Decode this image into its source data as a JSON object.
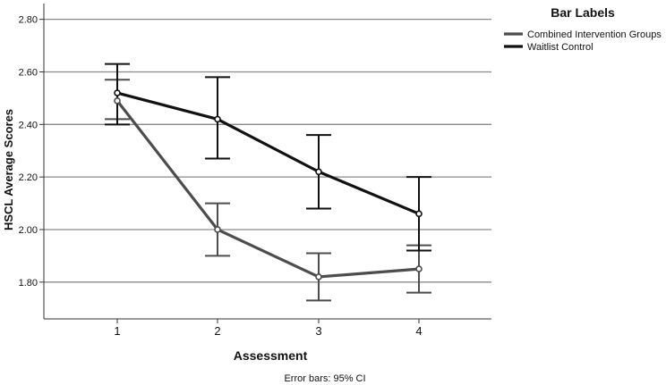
{
  "chart_data": {
    "type": "line",
    "title": "",
    "xlabel": "Assessment",
    "ylabel": "HSCL Average Scores",
    "categories": [
      "1",
      "2",
      "3",
      "4"
    ],
    "ylim": [
      1.66,
      2.86
    ],
    "y_ticks": [
      "1.80",
      "2.00",
      "2.20",
      "2.40",
      "2.60",
      "2.80"
    ],
    "y_tick_values": [
      1.8,
      2.0,
      2.2,
      2.4,
      2.6,
      2.8
    ],
    "grid": true,
    "legend": {
      "title": "Bar Labels",
      "placement": "top-right"
    },
    "footnote": "Error bars: 95% CI",
    "series": [
      {
        "name": "Combined Intervention Groups",
        "color": "#4d4d4d",
        "values": [
          2.49,
          2.0,
          1.82,
          1.85
        ],
        "ci_low": [
          2.42,
          1.9,
          1.73,
          1.76
        ],
        "ci_high": [
          2.57,
          2.1,
          1.91,
          1.94
        ]
      },
      {
        "name": "Waitlist Control",
        "color": "#111111",
        "values": [
          2.52,
          2.42,
          2.22,
          2.06
        ],
        "ci_low": [
          2.4,
          2.27,
          2.08,
          1.92
        ],
        "ci_high": [
          2.63,
          2.58,
          2.36,
          2.2
        ]
      }
    ]
  }
}
